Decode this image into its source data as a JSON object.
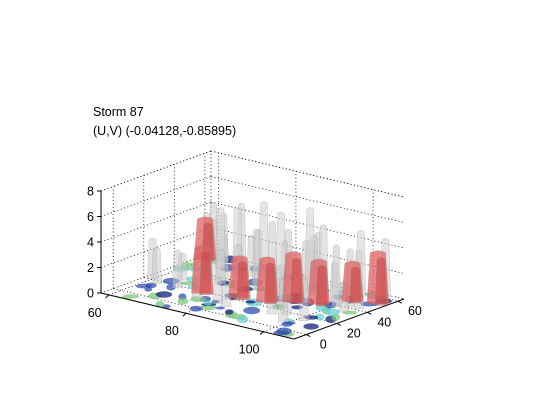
{
  "figure": {
    "title_line1": "Storm 87",
    "title_line2": "(U,V) (-0.04128,-0.85895)"
  },
  "chart_data": {
    "type": "3d-surface",
    "title": "Storm 87",
    "subtitle": "(U,V) (-0.04128,-0.85895)",
    "xlabel": "",
    "ylabel": "",
    "zlabel": "",
    "x_ticks": [
      "60",
      "80",
      "100"
    ],
    "y_ticks": [
      "0",
      "20",
      "40",
      "60"
    ],
    "z_ticks": [
      "0",
      "2",
      "4",
      "6",
      "8"
    ],
    "xlim": [
      58,
      108
    ],
    "ylim": [
      -8,
      64
    ],
    "zlim": [
      0,
      8
    ],
    "grid": true,
    "legend": "none",
    "colors": {
      "core": "#e06060",
      "shell": "#c8c8c8",
      "base_cyan": "#6ed0d0",
      "base_green": "#7cc87c",
      "base_blue": "#3050b0",
      "base_navy": "#10207a"
    },
    "red_cores": [
      {
        "x": 60,
        "y": 55,
        "z": 3.2
      },
      {
        "x": 74,
        "y": 18,
        "z": 3.6
      },
      {
        "x": 82,
        "y": 22,
        "z": 3.2
      },
      {
        "x": 88,
        "y": 25,
        "z": 3.4
      },
      {
        "x": 92,
        "y": 32,
        "z": 3.8
      },
      {
        "x": 97,
        "y": 36,
        "z": 3.4
      },
      {
        "x": 101,
        "y": 48,
        "z": 3.0
      },
      {
        "x": 106,
        "y": 52,
        "z": 4.0
      }
    ],
    "gray_peaks": [
      {
        "x": 66,
        "y": 50,
        "z": 4.6
      },
      {
        "x": 72,
        "y": 46,
        "z": 5.2
      },
      {
        "x": 78,
        "y": 48,
        "z": 6.0
      },
      {
        "x": 84,
        "y": 44,
        "z": 5.8
      },
      {
        "x": 90,
        "y": 48,
        "z": 6.4
      },
      {
        "x": 95,
        "y": 44,
        "z": 5.6
      },
      {
        "x": 100,
        "y": 56,
        "z": 5.0
      },
      {
        "x": 104,
        "y": 62,
        "z": 4.4
      }
    ]
  }
}
